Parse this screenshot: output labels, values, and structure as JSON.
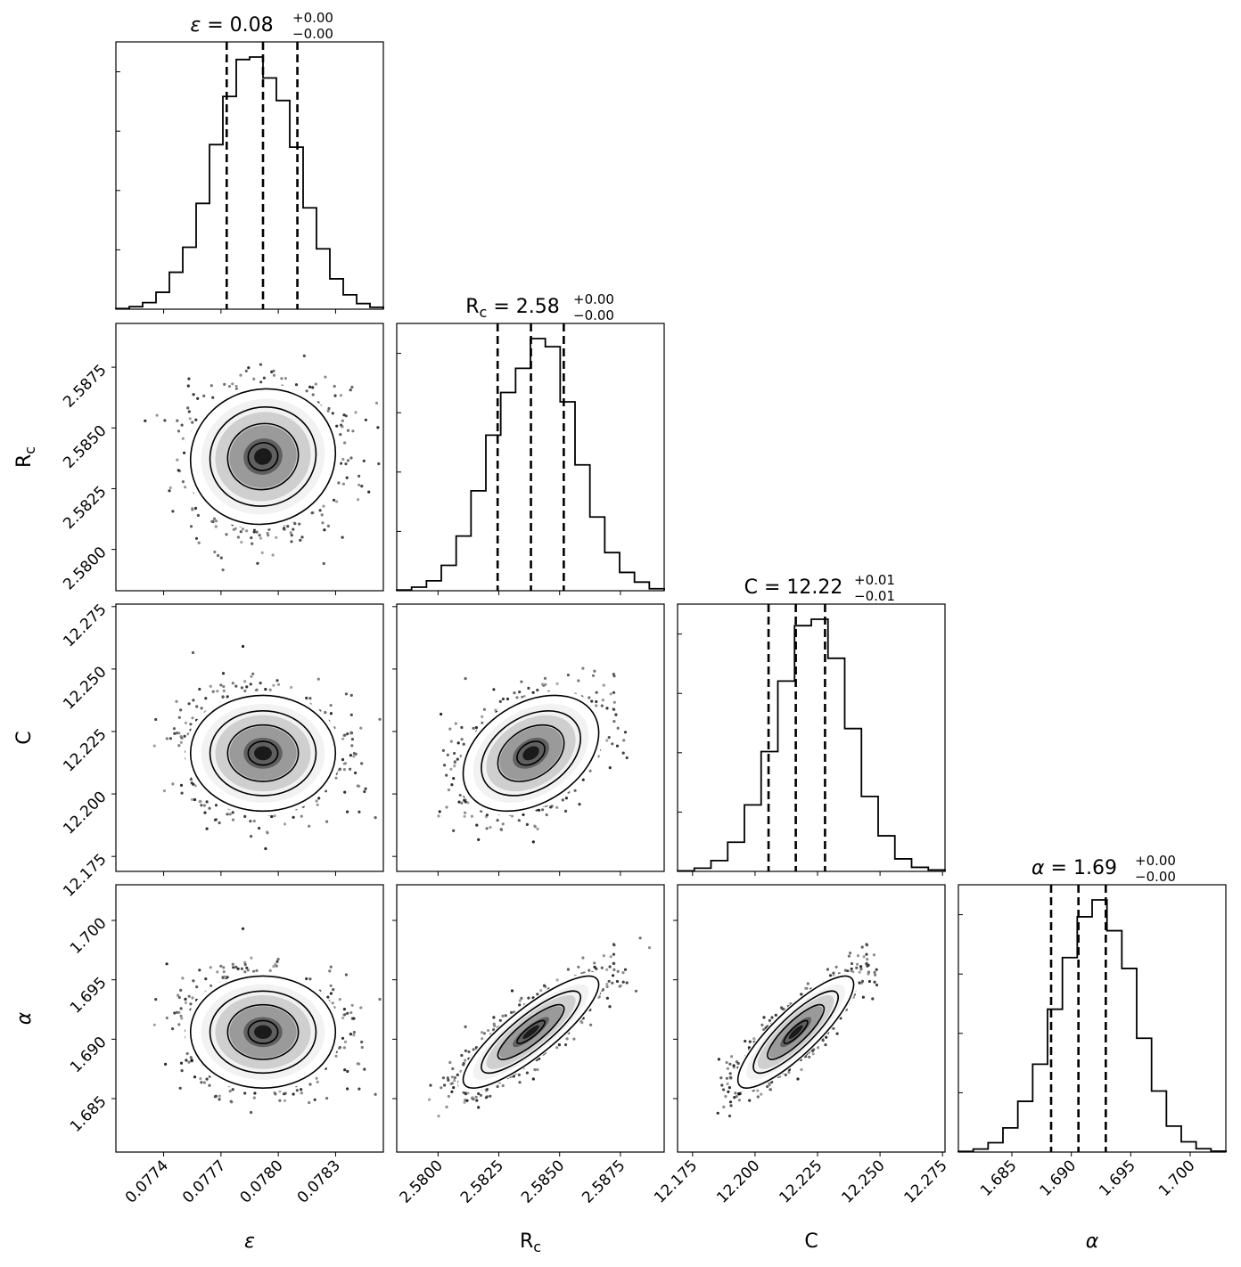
{
  "chart_data": {
    "type": "corner",
    "parameters": [
      {
        "key": "eps",
        "label": "ε",
        "title": "ε = 0.08",
        "title_value": "0.08",
        "title_plus": "+0.00",
        "title_minus": "−0.00",
        "range": [
          0.07715,
          0.07855
        ],
        "ticks": [
          0.0774,
          0.0777,
          0.078,
          0.0783
        ],
        "tick_labels": [
          "0.0774",
          "0.0777",
          "0.0780",
          "0.0783"
        ],
        "quantiles": [
          0.07773,
          0.07792,
          0.0781
        ],
        "hist": [
          0.2,
          0.8,
          2.1,
          5.4,
          11.8,
          19.8,
          33.8,
          52.6,
          68.0,
          79.8,
          80.6,
          73.9,
          66.7,
          51.8,
          32.4,
          19.3,
          9.7,
          4.6,
          1.8,
          0.6
        ]
      },
      {
        "key": "rc",
        "label": "R",
        "label_sub": "c",
        "title": "R_c = 2.58",
        "title_value": "2.58",
        "title_plus": "+0.00",
        "title_minus": "−0.00",
        "range": [
          2.5783,
          2.5893
        ],
        "ticks": [
          2.58,
          2.5825,
          2.585,
          2.5875
        ],
        "tick_labels": [
          "2.5800",
          "2.5825",
          "2.5850",
          "2.5875"
        ],
        "quantiles": [
          2.58245,
          2.58382,
          2.58517
        ],
        "hist": [
          0.3,
          1.4,
          3.9,
          10.0,
          21.5,
          39.3,
          61.2,
          78.0,
          87.5,
          99.2,
          96.0,
          74.3,
          49.5,
          29.0,
          15.0,
          7.2,
          3.4,
          0.8
        ]
      },
      {
        "key": "C",
        "label": "C",
        "title": "C = 12.22",
        "title_value": "12.22",
        "title_plus": "+0.01",
        "title_minus": "−0.01",
        "range": [
          12.169,
          12.276
        ],
        "ticks": [
          12.175,
          12.2,
          12.225,
          12.25,
          12.275
        ],
        "tick_labels": [
          "12.175",
          "12.200",
          "12.225",
          "12.250",
          "12.275"
        ],
        "quantiles": [
          12.2054,
          12.2163,
          12.228
        ],
        "hist": [
          0.2,
          1.1,
          3.7,
          10.0,
          22.8,
          41.1,
          65.3,
          84.3,
          86.5,
          73.1,
          49.0,
          25.7,
          12.2,
          4.3,
          1.4,
          0.5
        ]
      },
      {
        "key": "alpha",
        "label": "α",
        "title": "α = 1.69",
        "title_value": "1.69",
        "title_plus": "+0.00",
        "title_minus": "−0.00",
        "range": [
          1.6805,
          1.703
        ],
        "ticks": [
          1.685,
          1.69,
          1.695,
          1.7
        ],
        "tick_labels": [
          "1.685",
          "1.690",
          "1.695",
          "1.700"
        ],
        "quantiles": [
          1.6883,
          1.6906,
          1.6929
        ],
        "hist": [
          0.2,
          1.0,
          3.1,
          8.0,
          16.8,
          29.1,
          47.3,
          64.4,
          77.9,
          83.5,
          73.3,
          60.8,
          37.7,
          20.2,
          8.6,
          3.4,
          1.1,
          0.3
        ]
      }
    ],
    "correlations": [
      [
        1.0,
        0.05,
        0.0,
        0.0
      ],
      [
        0.05,
        1.0,
        0.35,
        0.85
      ],
      [
        0.0,
        0.35,
        1.0,
        0.85
      ],
      [
        0.0,
        0.85,
        0.85,
        1.0
      ]
    ],
    "contour_levels": [
      0.5,
      1.0,
      1.5,
      2.0
    ],
    "quantile_levels": [
      0.16,
      0.5,
      0.84
    ],
    "grid": false,
    "legend": "none"
  }
}
